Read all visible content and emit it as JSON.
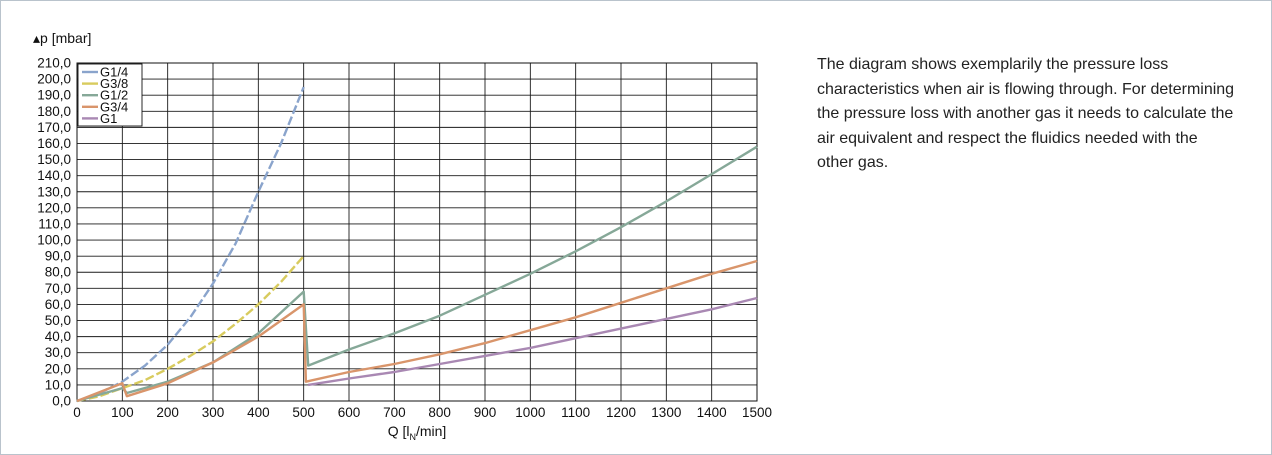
{
  "description": "The diagram shows exemplarily the pressure loss characteristics when air is flowing through. For determining the pressure loss with another gas it needs to calculate the air equivalent and respect the fluidics needed with the other gas.",
  "chart_data": {
    "type": "line",
    "title": "",
    "ylabel": "▴p [mbar]",
    "xlabel": "Q [l",
    "xlabel_sub": "N",
    "xlabel_suffix": "/min]",
    "xlim": [
      0,
      1500
    ],
    "ylim": [
      0,
      210
    ],
    "x_ticks": [
      0,
      100,
      200,
      300,
      400,
      500,
      600,
      700,
      800,
      900,
      1000,
      1100,
      1200,
      1300,
      1400,
      1500
    ],
    "y_ticks": [
      0,
      10,
      20,
      30,
      40,
      50,
      60,
      70,
      80,
      90,
      100,
      110,
      120,
      130,
      140,
      150,
      160,
      170,
      180,
      190,
      200,
      210
    ],
    "y_tick_labels": [
      "0,0",
      "10,0",
      "20,0",
      "30,0",
      "40,0",
      "50,0",
      "60,0",
      "70,0",
      "80,0",
      "90,0",
      "100,0",
      "110,0",
      "120,0",
      "130,0",
      "140,0",
      "150,0",
      "160,0",
      "170,0",
      "180,0",
      "190,0",
      "200,0",
      "210,0"
    ],
    "grid": true,
    "legend": "top-left",
    "series": [
      {
        "name": "G1/4",
        "color": "#8aa4cc",
        "dashed": true,
        "x": [
          0,
          50,
          100,
          150,
          200,
          250,
          300,
          350,
          400,
          450,
          500
        ],
        "y": [
          0,
          5,
          12,
          22,
          35,
          52,
          73,
          98,
          130,
          160,
          195
        ]
      },
      {
        "name": "G3/8",
        "color": "#d8cb5e",
        "dashed": true,
        "x": [
          0,
          50,
          100,
          150,
          200,
          250,
          300,
          350,
          400,
          450,
          500
        ],
        "y": [
          0,
          3,
          8,
          13,
          20,
          28,
          37,
          48,
          60,
          74,
          90
        ]
      },
      {
        "name": "G1/2",
        "color": "#86a898",
        "dashed": false,
        "x": [
          0,
          100,
          110,
          200,
          300,
          400,
          500,
          510,
          600,
          700,
          800,
          900,
          1000,
          1100,
          1200,
          1300,
          1400,
          1500
        ],
        "y": [
          0,
          8,
          5,
          12,
          24,
          42,
          68,
          22,
          32,
          42,
          53,
          66,
          79,
          93,
          108,
          124,
          141,
          158
        ]
      },
      {
        "name": "G3/4",
        "color": "#d9956b",
        "dashed": false,
        "x": [
          0,
          100,
          110,
          200,
          300,
          400,
          500,
          505,
          600,
          700,
          800,
          900,
          1000,
          1100,
          1200,
          1300,
          1400,
          1500
        ],
        "y": [
          0,
          11,
          3,
          11,
          24,
          40,
          60,
          12,
          18,
          23,
          29,
          36,
          44,
          52,
          61,
          70,
          79,
          87
        ]
      },
      {
        "name": "G1",
        "color": "#a988b3",
        "dashed": false,
        "x": [
          510,
          600,
          700,
          800,
          900,
          1000,
          1100,
          1200,
          1300,
          1400,
          1500
        ],
        "y": [
          10,
          14,
          18,
          23,
          28,
          33,
          39,
          45,
          51,
          57,
          64
        ]
      }
    ]
  }
}
